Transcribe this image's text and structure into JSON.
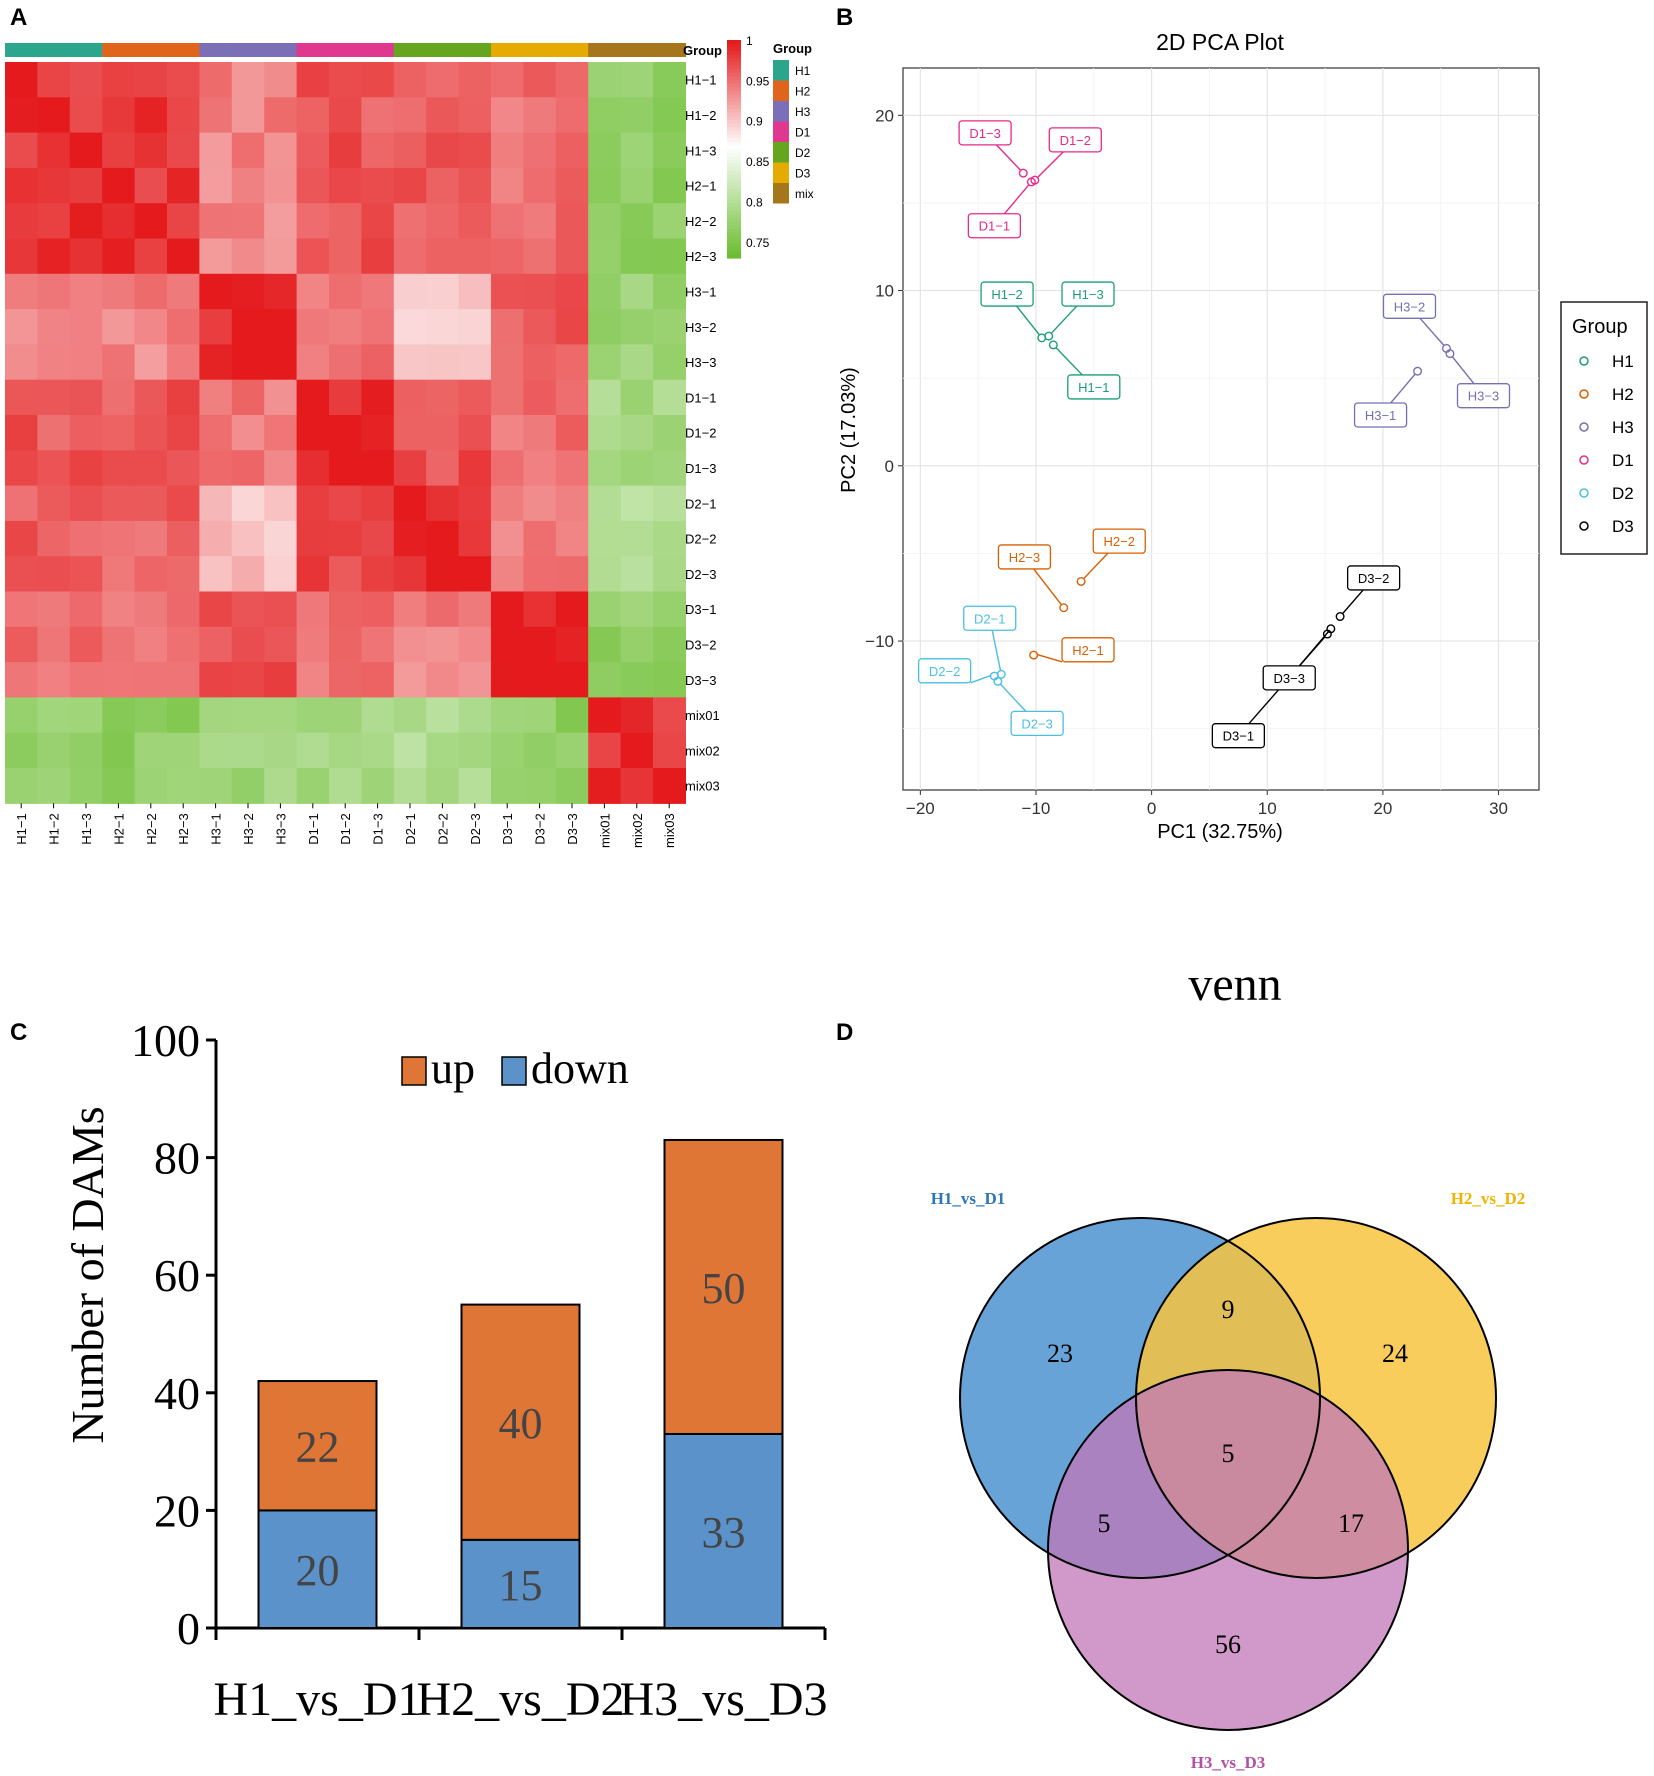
{
  "panels": {
    "a": "A",
    "b": "B",
    "c": "C",
    "d": "D"
  },
  "colors": {
    "H1": "#2ca58d",
    "H2": "#e0651b",
    "H3": "#7b6fb8",
    "D1": "#e0388f",
    "D2": "#66a61e",
    "D3": "#e6ab02",
    "mix": "#a6761d",
    "pcaH1": "#1b9e77",
    "pcaH2": "#d95f02",
    "pcaH3": "#7570b3",
    "pcaD1": "#e7298a",
    "pcaD2": "#4bbfe0",
    "pcaD3": "#000000",
    "up": "#e07636",
    "down": "#5b92c9",
    "vennA": "#5b9bd5",
    "vennB": "#f8c440",
    "vennC": "#c077b8"
  },
  "chart_data": [
    {
      "type": "heatmap",
      "samples": [
        "H1-1",
        "H1-2",
        "H1-3",
        "H2-1",
        "H2-2",
        "H2-3",
        "H3-1",
        "H3-2",
        "H3-3",
        "D1-1",
        "D1-2",
        "D1-3",
        "D2-1",
        "D2-2",
        "D2-3",
        "D3-1",
        "D3-2",
        "D3-3",
        "mix01",
        "mix02",
        "mix03"
      ],
      "row_labels": [
        "H1−1",
        "H1−2",
        "H1−3",
        "H2−1",
        "H2−2",
        "H2−3",
        "H3−1",
        "H3−2",
        "H3−3",
        "D1−1",
        "D1−2",
        "D1−3",
        "D2−1",
        "D2−2",
        "D2−3",
        "D3−1",
        "D3−2",
        "D3−3",
        "mix01",
        "mix02",
        "mix03"
      ],
      "col_labels": [
        "H1−1",
        "H1−2",
        "H1−3",
        "H2−1",
        "H2−2",
        "H2−3",
        "H3−1",
        "H3−2",
        "H3−3",
        "D1−1",
        "D1−2",
        "D1−3",
        "D2−1",
        "D2−2",
        "D2−3",
        "D3−1",
        "D3−2",
        "D3−3",
        "mix01",
        "mix02",
        "mix03"
      ],
      "group_of_sample": [
        "H1",
        "H1",
        "H1",
        "H2",
        "H2",
        "H2",
        "H3",
        "H3",
        "H3",
        "D1",
        "D1",
        "D1",
        "D2",
        "D2",
        "D2",
        "D3",
        "D3",
        "D3",
        "mix",
        "mix",
        "mix"
      ],
      "block_groups": [
        "H",
        "H",
        "H",
        "H",
        "H",
        "H",
        "H3",
        "H3",
        "H3",
        "D1",
        "D1",
        "D1",
        "D2",
        "D2",
        "D2",
        "D3",
        "D3",
        "D3",
        "mix",
        "mix",
        "mix"
      ],
      "block_correlation": {
        "H|H": 0.985,
        "H|H3": 0.94,
        "H|D1": 0.965,
        "H|D2": 0.96,
        "H|D3": 0.95,
        "H|mix": 0.77,
        "H3|H3": 0.99,
        "H3|D1": 0.945,
        "H3|D2": 0.905,
        "H3|D3": 0.965,
        "H3|mix": 0.78,
        "D1|D1": 0.995,
        "D1|D2": 0.97,
        "D1|D3": 0.95,
        "D1|mix": 0.79,
        "D2|D2": 0.995,
        "D2|D3": 0.94,
        "D2|mix": 0.8,
        "D3|D3": 0.995,
        "D3|mix": 0.77,
        "mix|mix": 0.985
      },
      "legend_title": "Group",
      "legend_groups": [
        "H1",
        "H2",
        "H3",
        "D1",
        "D2",
        "D3",
        "mix"
      ],
      "color_scale_ticks": [
        "1",
        "0.95",
        "0.9",
        "0.85",
        "0.8",
        "0.75"
      ],
      "color_scale_range": [
        0.73,
        1.0
      ]
    },
    {
      "type": "scatter",
      "title": "2D PCA Plot",
      "xlabel": "PC1 (32.75%)",
      "ylabel": "PC2 (17.03%)",
      "xlim": [
        -21.5,
        33.5
      ],
      "ylim": [
        -18.5,
        22.7
      ],
      "xticks": [
        -20,
        -10,
        0,
        10,
        20,
        30
      ],
      "xtick_labels": [
        "−20",
        "−10",
        "0",
        "10",
        "20",
        "30"
      ],
      "yticks": [
        -10,
        0,
        10,
        20
      ],
      "ytick_labels": [
        "−10",
        "0",
        "10",
        "20"
      ],
      "legend_title": "Group",
      "legend": [
        "H1",
        "H2",
        "H3",
        "D1",
        "D2",
        "D3"
      ],
      "points": [
        {
          "group": "H1",
          "label": "H1−1",
          "x": -8.5,
          "y": 6.9,
          "lx": -5.0,
          "ly": 4.5
        },
        {
          "group": "H1",
          "label": "H1−2",
          "x": -9.5,
          "y": 7.3,
          "lx": -12.5,
          "ly": 9.8
        },
        {
          "group": "H1",
          "label": "H1−3",
          "x": -8.9,
          "y": 7.4,
          "lx": -5.5,
          "ly": 9.8
        },
        {
          "group": "H2",
          "label": "H2−1",
          "x": -10.2,
          "y": -10.8,
          "lx": -5.5,
          "ly": -10.5
        },
        {
          "group": "H2",
          "label": "H2−2",
          "x": -6.1,
          "y": -6.6,
          "lx": -2.8,
          "ly": -4.3
        },
        {
          "group": "H2",
          "label": "H2−3",
          "x": -7.6,
          "y": -8.1,
          "lx": -11.0,
          "ly": -5.2
        },
        {
          "group": "H3",
          "label": "H3−1",
          "x": 23.0,
          "y": 5.4,
          "lx": 19.8,
          "ly": 2.9
        },
        {
          "group": "H3",
          "label": "H3−2",
          "x": 25.5,
          "y": 6.7,
          "lx": 22.3,
          "ly": 9.1
        },
        {
          "group": "H3",
          "label": "H3−3",
          "x": 25.8,
          "y": 6.4,
          "lx": 28.7,
          "ly": 4.0
        },
        {
          "group": "D1",
          "label": "D1−1",
          "x": -10.4,
          "y": 16.2,
          "lx": -13.6,
          "ly": 13.7
        },
        {
          "group": "D1",
          "label": "D1−2",
          "x": -10.1,
          "y": 16.3,
          "lx": -6.6,
          "ly": 18.6
        },
        {
          "group": "D1",
          "label": "D1−3",
          "x": -11.1,
          "y": 16.7,
          "lx": -14.4,
          "ly": 19.0
        },
        {
          "group": "D2",
          "label": "D2−1",
          "x": -13.0,
          "y": -11.9,
          "lx": -14.0,
          "ly": -8.7
        },
        {
          "group": "D2",
          "label": "D2−2",
          "x": -13.6,
          "y": -12.0,
          "lx": -17.9,
          "ly": -11.7
        },
        {
          "group": "D2",
          "label": "D2−3",
          "x": -13.3,
          "y": -12.3,
          "lx": -9.9,
          "ly": -14.7
        },
        {
          "group": "D3",
          "label": "D3−1",
          "x": 15.2,
          "y": -9.6,
          "lx": 7.5,
          "ly": -15.4
        },
        {
          "group": "D3",
          "label": "D3−2",
          "x": 16.3,
          "y": -8.6,
          "lx": 19.2,
          "ly": -6.4
        },
        {
          "group": "D3",
          "label": "D3−3",
          "x": 15.5,
          "y": -9.3,
          "lx": 11.9,
          "ly": -12.1
        }
      ]
    },
    {
      "type": "bar",
      "stacked": true,
      "categories": [
        "H1_vs_D1",
        "H2_vs_D2",
        "H3_vs_D3"
      ],
      "series": [
        {
          "name": "down",
          "values": [
            20,
            15,
            33
          ]
        },
        {
          "name": "up",
          "values": [
            22,
            40,
            50
          ]
        }
      ],
      "ylabel": "Number of DAMs",
      "ylim": [
        0,
        100
      ],
      "yticks": [
        0,
        20,
        40,
        60,
        80,
        100
      ],
      "ytick_labels": [
        "0",
        "20",
        "40",
        "60",
        "80",
        "100"
      ],
      "legend": [
        "up",
        "down"
      ]
    },
    {
      "type": "venn",
      "title": "venn",
      "sets": [
        "H1_vs_D1",
        "H2_vs_D2",
        "H3_vs_D3"
      ],
      "regions": [
        {
          "sets": [
            "H1_vs_D1"
          ],
          "value": 23
        },
        {
          "sets": [
            "H2_vs_D2"
          ],
          "value": 24
        },
        {
          "sets": [
            "H3_vs_D3"
          ],
          "value": 56
        },
        {
          "sets": [
            "H1_vs_D1",
            "H2_vs_D2"
          ],
          "value": 9
        },
        {
          "sets": [
            "H1_vs_D1",
            "H3_vs_D3"
          ],
          "value": 5
        },
        {
          "sets": [
            "H2_vs_D2",
            "H3_vs_D3"
          ],
          "value": 17
        },
        {
          "sets": [
            "H1_vs_D1",
            "H2_vs_D2",
            "H3_vs_D3"
          ],
          "value": 5
        }
      ]
    }
  ]
}
